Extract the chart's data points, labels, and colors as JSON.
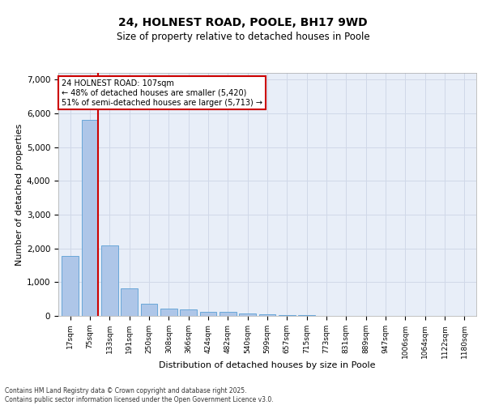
{
  "title": "24, HOLNEST ROAD, POOLE, BH17 9WD",
  "subtitle": "Size of property relative to detached houses in Poole",
  "xlabel": "Distribution of detached houses by size in Poole",
  "ylabel": "Number of detached properties",
  "bar_labels": [
    "17sqm",
    "75sqm",
    "133sqm",
    "191sqm",
    "250sqm",
    "308sqm",
    "366sqm",
    "424sqm",
    "482sqm",
    "540sqm",
    "599sqm",
    "657sqm",
    "715sqm",
    "773sqm",
    "831sqm",
    "889sqm",
    "947sqm",
    "1006sqm",
    "1064sqm",
    "1122sqm",
    "1180sqm"
  ],
  "bar_values": [
    1780,
    5800,
    2080,
    810,
    350,
    215,
    200,
    120,
    110,
    70,
    50,
    30,
    20,
    10,
    5,
    3,
    2,
    1,
    1,
    0,
    0
  ],
  "bar_color": "#aec6e8",
  "bar_edge_color": "#5a9fd4",
  "vline_color": "#cc0000",
  "annotation_text": "24 HOLNEST ROAD: 107sqm\n← 48% of detached houses are smaller (5,420)\n51% of semi-detached houses are larger (5,713) →",
  "annotation_box_color": "#cc0000",
  "annotation_text_color": "#000000",
  "ylim": [
    0,
    7200
  ],
  "yticks": [
    0,
    1000,
    2000,
    3000,
    4000,
    5000,
    6000,
    7000
  ],
  "grid_color": "#d0d8e8",
  "bg_color": "#e8eef8",
  "footer_line1": "Contains HM Land Registry data © Crown copyright and database right 2025.",
  "footer_line2": "Contains public sector information licensed under the Open Government Licence v3.0."
}
